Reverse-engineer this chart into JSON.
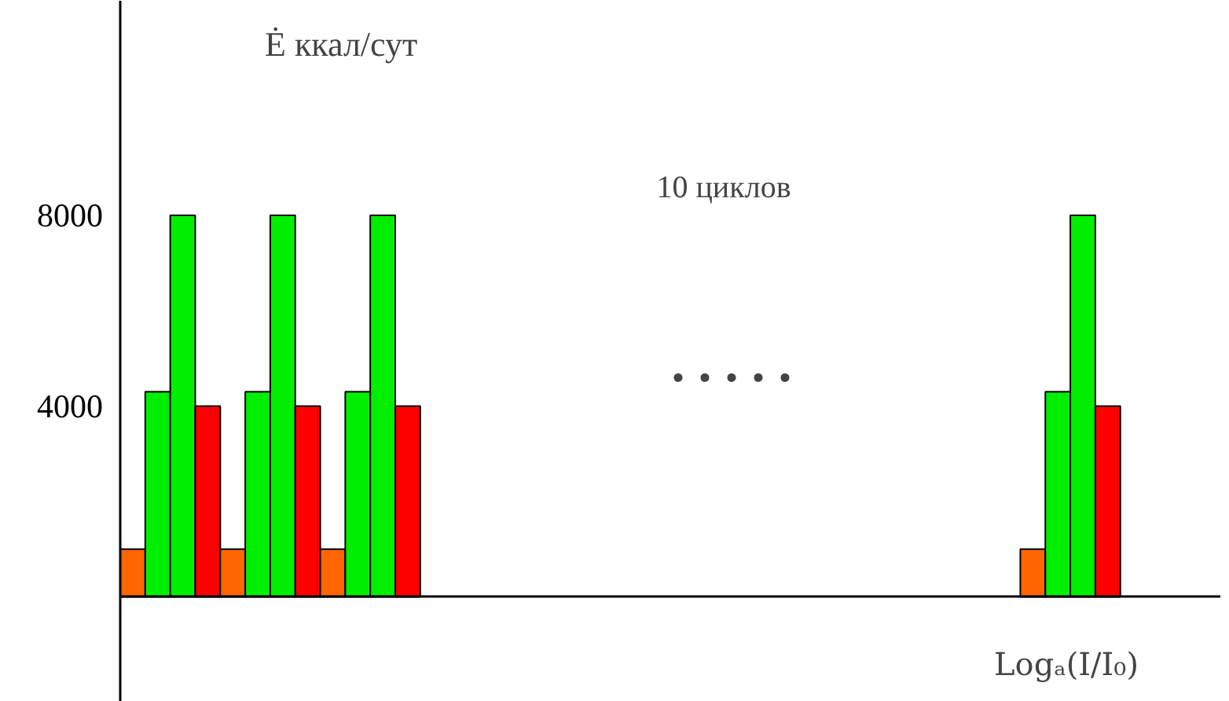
{
  "chart_data": {
    "type": "bar",
    "ylabel": "Ė ккал/сут",
    "xlabel": "Logₐ(I/I₀)",
    "categories": [
      null,
      null,
      null,
      null,
      null,
      null,
      null,
      null,
      null,
      null,
      null,
      null,
      null,
      null,
      null,
      null,
      null,
      null,
      null,
      null,
      null,
      null,
      null,
      null,
      null,
      null,
      null,
      null,
      null,
      null,
      null,
      null,
      null,
      null,
      null,
      null,
      null,
      null,
      null,
      null,
      null,
      null,
      null,
      null
    ],
    "values": [
      1000,
      4300,
      8000,
      4000,
      1000,
      4300,
      8000,
      4000,
      1000,
      4300,
      8000,
      4000,
      null,
      null,
      null,
      null,
      null,
      null,
      null,
      null,
      null,
      null,
      null,
      null,
      null,
      null,
      null,
      null,
      null,
      null,
      null,
      null,
      null,
      null,
      null,
      null,
      1000,
      4300,
      8000,
      4000,
      null,
      null,
      null,
      null
    ],
    "colors": [
      "#ff6600",
      "#00ee00",
      "#00ee00",
      "#ff0000",
      "#ff6600",
      "#00ee00",
      "#00ee00",
      "#ff0000",
      "#ff6600",
      "#00ee00",
      "#00ee00",
      "#ff0000",
      null,
      null,
      null,
      null,
      null,
      null,
      null,
      null,
      null,
      null,
      null,
      null,
      null,
      null,
      null,
      null,
      null,
      null,
      null,
      null,
      null,
      null,
      null,
      null,
      "#ff6600",
      "#00ee00",
      "#00ee00",
      "#ff0000",
      null,
      null,
      null,
      null
    ],
    "ylim": [
      -2200,
      12500
    ],
    "yticks": [
      4000,
      8000
    ],
    "tick_labels": "y",
    "annotations": [
      "10 циклов",
      ". . . . ."
    ]
  }
}
